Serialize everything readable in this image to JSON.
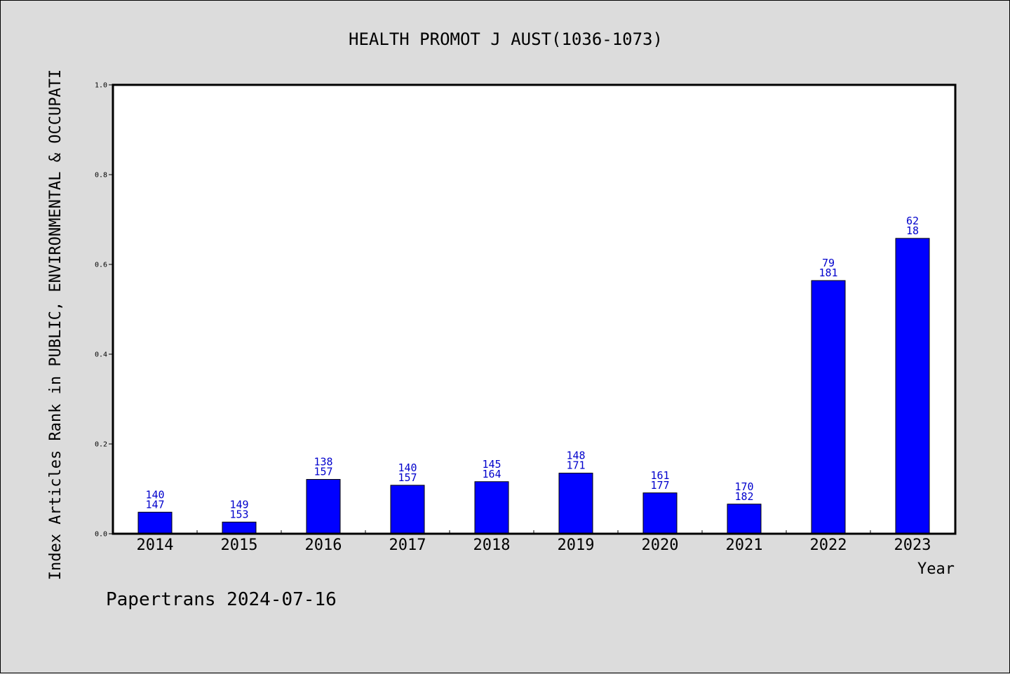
{
  "chart_data": {
    "type": "bar",
    "title": "HEALTH PROMOT J AUST(1036-1073)",
    "xlabel": "Year",
    "ylabel": "Index Articles Rank in PUBLIC, ENVIRONMENTAL & OCCUPATI",
    "ylim": [
      0,
      1.0
    ],
    "yticks": [
      "0.0",
      "0.2",
      "0.4",
      "0.6",
      "0.8",
      "1.0"
    ],
    "categories": [
      "2014",
      "2015",
      "2016",
      "2017",
      "2018",
      "2019",
      "2020",
      "2021",
      "2022",
      "2023"
    ],
    "values": [
      0.048,
      0.026,
      0.121,
      0.108,
      0.116,
      0.135,
      0.091,
      0.066,
      0.564,
      0.658
    ],
    "labels_top": [
      "140",
      "149",
      "138",
      "140",
      "145",
      "148",
      "161",
      "170",
      "79",
      "62"
    ],
    "labels_bottom": [
      "147",
      "153",
      "157",
      "157",
      "164",
      "171",
      "177",
      "182",
      "181",
      "18"
    ],
    "bar_color": "#0000ff",
    "label_color": "#0000cc",
    "grid": false
  },
  "footer": "Papertrans 2024-07-16"
}
